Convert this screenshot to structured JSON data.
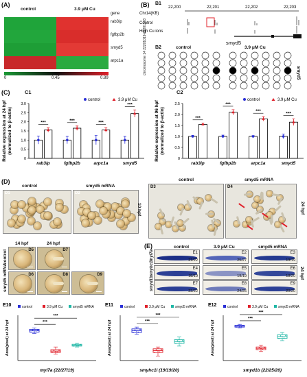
{
  "panels": {
    "A": "(A)",
    "B": "(B)",
    "B1": "B1",
    "B2": "B2",
    "C": "(C)",
    "C1": "C1",
    "C2": "C2",
    "D": "(D)",
    "E": "(E)"
  },
  "heatmap": {
    "col_labels": [
      "control",
      "3.9 μM Cu"
    ],
    "gene_header": "gene",
    "genes": [
      "rab3ip",
      "fgfbp2b",
      "smyd5",
      "arpc1a"
    ],
    "colors": [
      [
        "#1fa43a",
        "#e0322f"
      ],
      [
        "#22a63c",
        "#d92d2b"
      ],
      [
        "#1e9e36",
        "#e33a35"
      ],
      [
        "#c8282a",
        "#2aaa40"
      ]
    ],
    "scale": [
      "0",
      "0.45",
      "0.89"
    ],
    "scale_colors": [
      "#1a9a35",
      "#111111",
      "#e0202a"
    ]
  },
  "genome": {
    "chrom": "Chr14(KB)",
    "ticks": [
      "22,200",
      "22,201",
      "22,202",
      "22,203"
    ],
    "tracks": [
      "Control",
      "High Cu ions"
    ],
    "gene": "smyd5"
  },
  "methylation": {
    "row_label": "chromosome 14\n22201019-22201143",
    "groups": [
      "control",
      "3.9 μM Cu"
    ],
    "gene": "smyd5",
    "control_filled": [
      [],
      [],
      [
        5
      ],
      [],
      []
    ],
    "cu_filled": [
      [],
      [],
      [
        0,
        2,
        5
      ],
      [],
      []
    ]
  },
  "chart_c1": {
    "ylabel": "Relative expression at 24 hpf\n(normalized to β-actin)",
    "legend": [
      "control",
      "3.9 μM Cu"
    ],
    "categories": [
      "rab3ip",
      "fgfbp2b",
      "arpc1a",
      "smyd5"
    ],
    "yticks": [
      "0",
      "0.5",
      "1.0",
      "1.5",
      "2.0",
      "2.5",
      "3.0"
    ],
    "sig": [
      "***",
      "***",
      "***",
      "***"
    ]
  },
  "chart_c2": {
    "ylabel": "Relative expression at 96 hpf\n(normalized to β-actin)",
    "legend": [
      "control",
      "3.9 μM Cu"
    ],
    "categories": [
      "rab3ip",
      "fgfbp2b",
      "arpc1a",
      "smyd5"
    ],
    "yticks": [
      "0",
      "0.5",
      "1.0",
      "1.5",
      "2.0",
      "2.5"
    ],
    "sig": [
      "***",
      "***",
      "***",
      "***"
    ]
  },
  "panel_d": {
    "top_left": [
      "control",
      "smyd5 mRNA"
    ],
    "top_left_ids": [
      "D1",
      "D2"
    ],
    "time_10": "10 hpf",
    "top_right": [
      "control",
      "smyd5 mRNA"
    ],
    "top_right_ids": [
      "D3",
      "D4"
    ],
    "time_24": "24 hpf",
    "bottom_headers": [
      "14 hpf",
      "24 hpf"
    ],
    "bottom_rows": [
      "control",
      "smyd5 mRNA"
    ],
    "bottom_ids": [
      "D5",
      "D7",
      "D6",
      "D8",
      "D9"
    ]
  },
  "panel_e": {
    "columns": [
      "control",
      "3.9 μM Cu",
      "smyd5 mRNA"
    ],
    "rows": [
      "myl7a",
      "smyhc1l",
      "smyd1b"
    ],
    "time": "24 hpf",
    "ids": [
      [
        "E1",
        "E2",
        "E3"
      ],
      [
        "E4",
        "E5",
        "E6"
      ],
      [
        "E7",
        "E8",
        "E9"
      ]
    ],
    "counts": [
      [
        "21/22",
        "25/27",
        "19/19"
      ],
      [
        "18/19",
        "19/19",
        "18/20"
      ],
      [
        "22/22",
        "24/25",
        "20/20"
      ]
    ],
    "band_colors": [
      [
        "#1d2f86",
        "#5566b8",
        "#253a90"
      ],
      [
        "#2b3f95",
        "#8a93c4",
        "#34489a"
      ],
      [
        "#2a3e94",
        "#6d7ab9",
        "#2c4096"
      ]
    ]
  },
  "box_plots": [
    {
      "id": "E10",
      "xlabel": "myl7a (22/27/19)",
      "ylabel": "Area(pixel) at 24 hpf",
      "legend": [
        "control",
        "3.9 μM Cu",
        "smyd5 mRNA"
      ],
      "sig": [
        "***",
        "***"
      ]
    },
    {
      "id": "E11",
      "xlabel": "smyhc1l (19/19/20)",
      "ylabel": "Area(pixel) at 24 hpf",
      "legend": [
        "control",
        "3.9 μM Cu",
        "smyd5 mRNA"
      ],
      "sig": [
        "***",
        "***"
      ]
    },
    {
      "id": "E12",
      "xlabel": "smyd1b (22/25/20)",
      "ylabel": "Area(pixel) at 24 hpf",
      "legend": [
        "control",
        "3.9 μM Cu",
        "smyd5 mRNA"
      ],
      "sig": [
        "***",
        "***"
      ]
    }
  ],
  "colors": {
    "control": "#2a2fd6",
    "cu": "#e0202a",
    "mrna": "#1fb7a6"
  }
}
